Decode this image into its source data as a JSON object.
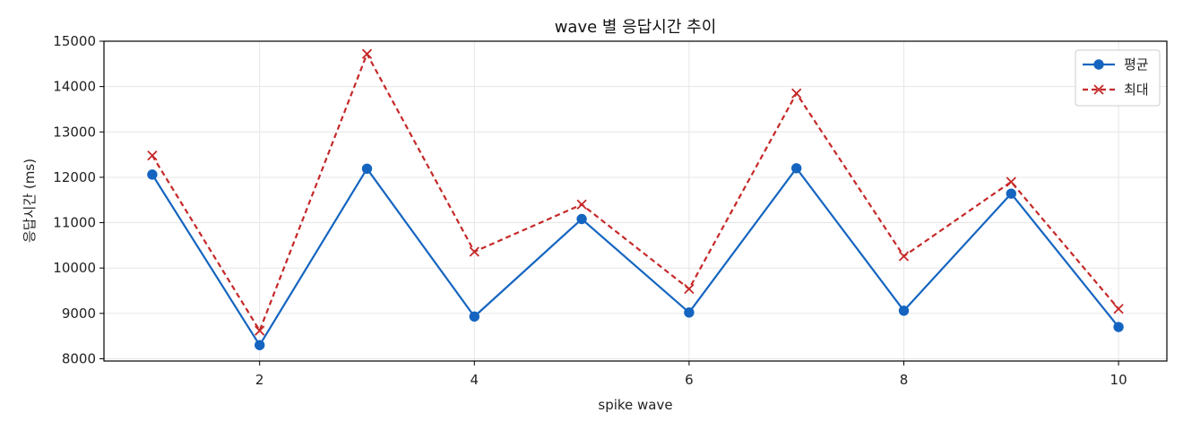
{
  "chart_data": {
    "type": "line",
    "title": "wave 별 응답시간 추이",
    "xlabel": "spike wave",
    "ylabel": "응답시간 (ms)",
    "x": [
      1,
      2,
      3,
      4,
      5,
      6,
      7,
      8,
      9,
      10
    ],
    "xlim": [
      0.55,
      10.45
    ],
    "ylim": [
      7950,
      15000
    ],
    "xticks": [
      2,
      4,
      6,
      8,
      10
    ],
    "yticks": [
      8000,
      9000,
      10000,
      11000,
      12000,
      13000,
      14000,
      15000
    ],
    "grid": true,
    "legend_position": "top-right",
    "series": [
      {
        "name": "평균",
        "color": "#1565c0",
        "line_style": "solid",
        "marker": "circle",
        "values": [
          12060,
          8300,
          12190,
          8930,
          11080,
          9020,
          12200,
          9060,
          11640,
          8700
        ]
      },
      {
        "name": "최대",
        "color": "#c62828",
        "line_style": "dashed",
        "marker": "x",
        "values": [
          12480,
          8620,
          14720,
          10360,
          11400,
          9540,
          13850,
          10260,
          11900,
          9100
        ]
      }
    ]
  }
}
